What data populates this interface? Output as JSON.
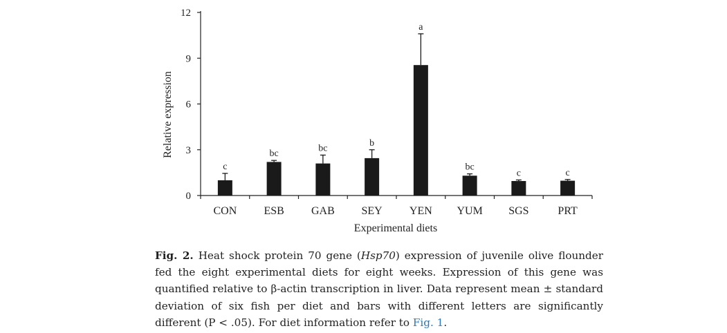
{
  "chart_data": {
    "type": "bar",
    "categories": [
      "CON",
      "ESB",
      "GAB",
      "SEY",
      "YEN",
      "YUM",
      "SGS",
      "PRT"
    ],
    "values": [
      1.0,
      2.2,
      2.1,
      2.45,
      8.55,
      1.3,
      0.95,
      0.97
    ],
    "errors": [
      0.45,
      0.1,
      0.55,
      0.55,
      2.05,
      0.12,
      0.07,
      0.08
    ],
    "significance_letters": [
      "c",
      "bc",
      "bc",
      "b",
      "a",
      "bc",
      "c",
      "c"
    ],
    "xlabel": "Experimental diets",
    "ylabel": "Relative expression",
    "ylim": [
      0,
      12
    ],
    "yticks": [
      0,
      3,
      6,
      9,
      12
    ],
    "bar_color": "#1a1a1a"
  },
  "caption": {
    "label": "Fig. 2.",
    "pre": "Heat shock protein 70 gene (",
    "gene": "Hsp70",
    "post": ") expression of juvenile olive flounder fed the eight experimental diets for eight weeks. Expression of this gene was quantified relative to β-actin transcription in liver. Data represent mean ± standard deviation of six fish per diet and bars with different letters are significantly different (P < .05). For diet information refer to ",
    "link": "Fig. 1",
    "end": "."
  }
}
